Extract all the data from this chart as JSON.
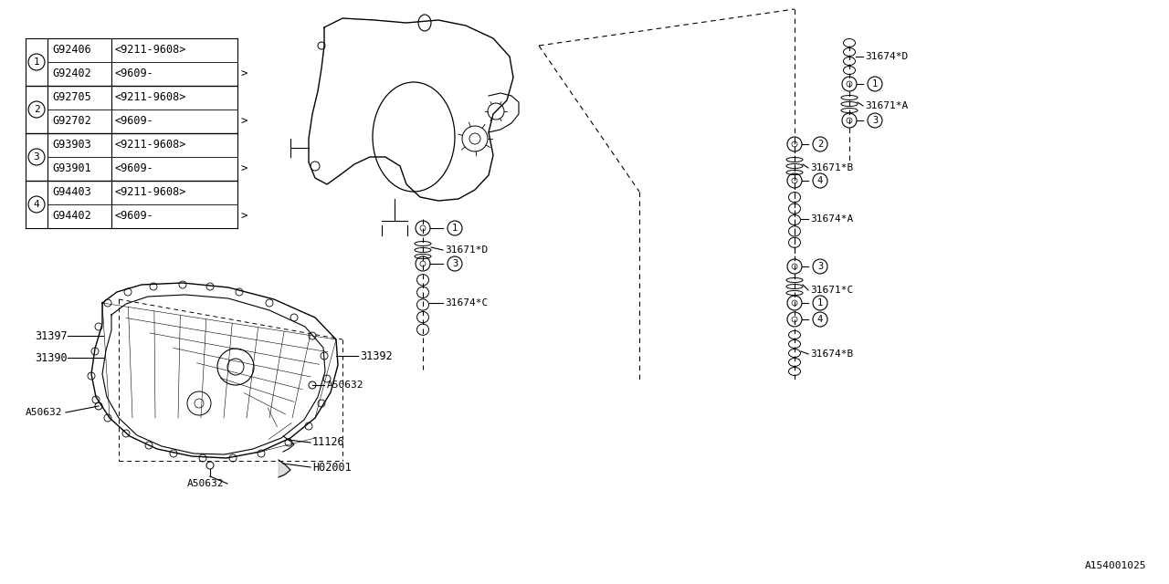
{
  "bg_color": "#ffffff",
  "line_color": "#000000",
  "watermark": "A154001025",
  "font_size": 8.5,
  "table_rows": [
    {
      "num": "1",
      "part1": "G92406",
      "date1": "<9211-9608>",
      "part2": "G92402",
      "date2": "<9609-"
    },
    {
      "num": "2",
      "part1": "G92705",
      "date1": "<9211-9608>",
      "part2": "G92702",
      "date2": "<9609-"
    },
    {
      "num": "3",
      "part1": "G93903",
      "date1": "<9211-9608>",
      "part2": "G93901",
      "date2": "<9609-"
    },
    {
      "num": "4",
      "part1": "G94403",
      "date1": "<9211-9608>",
      "part2": "G94402",
      "date2": "<9609-"
    }
  ]
}
